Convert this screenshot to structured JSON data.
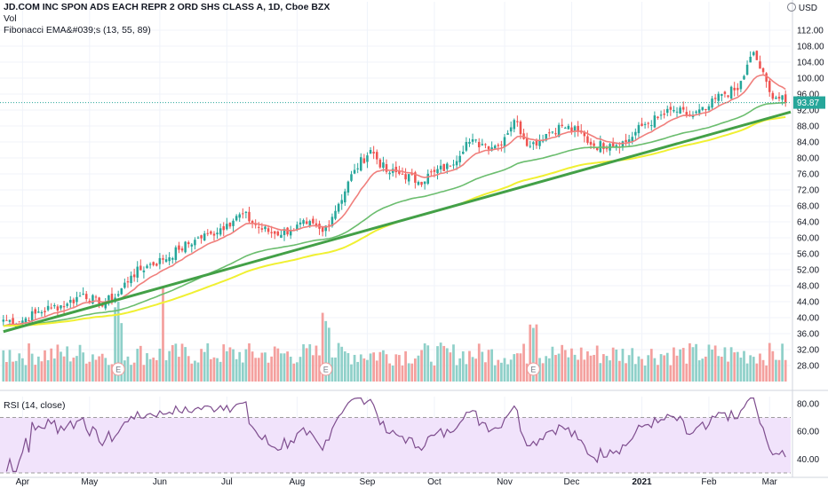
{
  "legend": {
    "title": "JD.COM INC SPON ADS EACH REPR 2 ORD SHS CLASS A, 1D, Cboe BZX",
    "vol": "Vol",
    "ema": "Fibonacci EMA&#039;s (13, 55, 89)"
  },
  "currency": "USD",
  "rsi_label": "RSI (14, close)",
  "last_price_label": "93.87",
  "earnings_marker": "E",
  "colors": {
    "up": "#26a69a",
    "down": "#ef5350",
    "vol_up": "#8fd0c9",
    "vol_down": "#f4a09e",
    "ema13": "#f07f7c",
    "ema55": "#6bbd6e",
    "ema89": "#f0f032",
    "trendline": "#43a047",
    "rsi_line": "#7e4d8e",
    "rsi_band": "#f1e3fb"
  },
  "chart_data": [
    {
      "type": "candlestick",
      "title": "JD.COM INC SPON ADS EACH REPR 2 ORD SHS CLASS A, 1D, Cboe BZX",
      "ylim": [
        24,
        116
      ],
      "y_ticks": [
        "28.00",
        "32.00",
        "36.00",
        "40.00",
        "44.00",
        "48.00",
        "52.00",
        "56.00",
        "60.00",
        "64.00",
        "68.00",
        "72.00",
        "76.00",
        "80.00",
        "84.00",
        "88.00",
        "92.00",
        "96.00",
        "100.00",
        "104.00",
        "108.00",
        "112.00"
      ],
      "x_ticks": [
        "Apr",
        "May",
        "Jun",
        "Jul",
        "Aug",
        "Sep",
        "Oct",
        "Nov",
        "Dec",
        "2021",
        "Feb",
        "Mar"
      ],
      "anchor_closes": [
        {
          "date": "Mar 25",
          "close": 39.5
        },
        {
          "date": "Apr 1",
          "close": 39.0
        },
        {
          "date": "Apr 8",
          "close": 41.0
        },
        {
          "date": "Apr 15",
          "close": 42.5
        },
        {
          "date": "Apr 22",
          "close": 43.5
        },
        {
          "date": "Apr 29",
          "close": 46.0
        },
        {
          "date": "May 6",
          "close": 43.5
        },
        {
          "date": "May 13",
          "close": 45.0
        },
        {
          "date": "May 20",
          "close": 50.5
        },
        {
          "date": "May 27",
          "close": 53.0
        },
        {
          "date": "Jun 3",
          "close": 54.5
        },
        {
          "date": "Jun 10",
          "close": 57.0
        },
        {
          "date": "Jun 17",
          "close": 59.5
        },
        {
          "date": "Jun 24",
          "close": 61.0
        },
        {
          "date": "Jul 1",
          "close": 63.5
        },
        {
          "date": "Jul 8",
          "close": 66.0
        },
        {
          "date": "Jul 15",
          "close": 62.5
        },
        {
          "date": "Jul 22",
          "close": 61.0
        },
        {
          "date": "Jul 29",
          "close": 62.0
        },
        {
          "date": "Aug 5",
          "close": 63.5
        },
        {
          "date": "Aug 12",
          "close": 61.5
        },
        {
          "date": "Aug 19",
          "close": 68.5
        },
        {
          "date": "Aug 26",
          "close": 77.0
        },
        {
          "date": "Sep 2",
          "close": 82.0
        },
        {
          "date": "Sep 9",
          "close": 76.5
        },
        {
          "date": "Sep 16",
          "close": 76.0
        },
        {
          "date": "Sep 23",
          "close": 74.0
        },
        {
          "date": "Sep 30",
          "close": 76.5
        },
        {
          "date": "Oct 7",
          "close": 78.0
        },
        {
          "date": "Oct 14",
          "close": 84.0
        },
        {
          "date": "Oct 21",
          "close": 83.5
        },
        {
          "date": "Oct 28",
          "close": 83.0
        },
        {
          "date": "Nov 4",
          "close": 89.5
        },
        {
          "date": "Nov 11",
          "close": 83.0
        },
        {
          "date": "Nov 18",
          "close": 86.0
        },
        {
          "date": "Nov 25",
          "close": 88.0
        },
        {
          "date": "Dec 2",
          "close": 86.5
        },
        {
          "date": "Dec 9",
          "close": 83.0
        },
        {
          "date": "Dec 16",
          "close": 83.5
        },
        {
          "date": "Dec 23",
          "close": 84.0
        },
        {
          "date": "Dec 30",
          "close": 88.0
        },
        {
          "date": "Jan 6",
          "close": 90.0
        },
        {
          "date": "Jan 13",
          "close": 92.0
        },
        {
          "date": "Jan 20",
          "close": 90.5
        },
        {
          "date": "Jan 27",
          "close": 92.0
        },
        {
          "date": "Feb 3",
          "close": 96.0
        },
        {
          "date": "Feb 10",
          "close": 97.0
        },
        {
          "date": "Feb 17",
          "close": 106.5
        },
        {
          "date": "Feb 24",
          "close": 96.5
        },
        {
          "date": "Mar 1",
          "close": 93.9
        }
      ],
      "earnings_dates": [
        "May 19",
        "Aug 17",
        "Nov 16"
      ],
      "last_price": 93.87,
      "ema_periods": [
        13,
        55,
        89
      ]
    },
    {
      "type": "line",
      "title": "RSI (14, close)",
      "ylim": [
        30,
        85
      ],
      "y_ticks": [
        "40.00",
        "60.00",
        "80.00"
      ],
      "bands": [
        30,
        70
      ]
    }
  ]
}
